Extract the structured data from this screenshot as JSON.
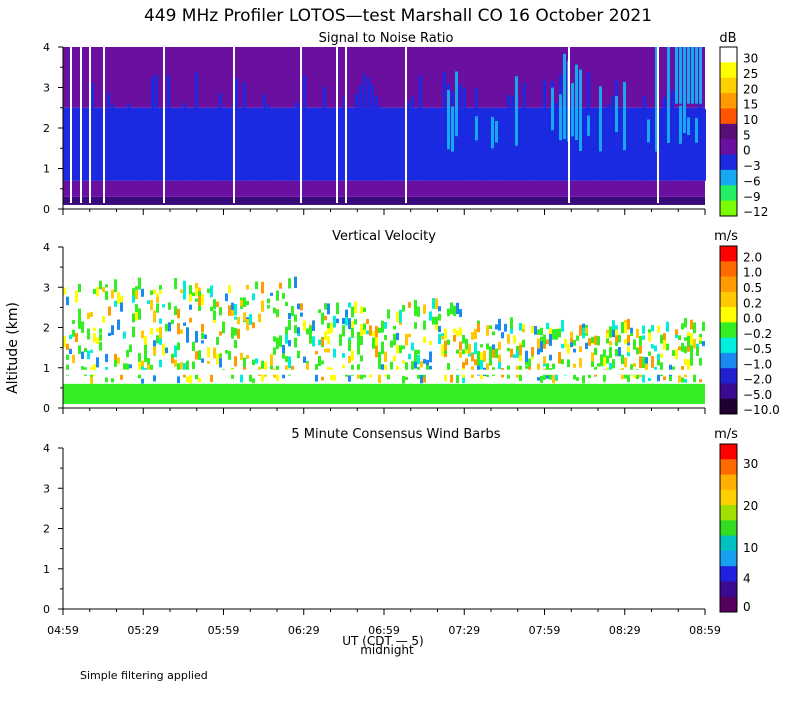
{
  "figure": {
    "title": "449 MHz Profiler LOTOS—test Marshall CO 16 October 2021",
    "y_axis_label": "Altitude (km)",
    "x_axis_label": "UT  (CDT — 5)",
    "midnight_label": "midnight",
    "footnote": "Simple filtering applied",
    "x_ticks": [
      "04:59",
      "05:29",
      "05:59",
      "06:29",
      "06:59",
      "07:29",
      "07:59",
      "08:29",
      "08:59"
    ],
    "y_ticks": [
      "0",
      "1",
      "2",
      "3",
      "4"
    ]
  },
  "chart_data": [
    {
      "type": "heatmap",
      "title": "Signal to Noise Ratio",
      "xlabel": "UT  (CDT — 5)",
      "ylabel": "Altitude (km)",
      "xlim": [
        "04:59",
        "08:59"
      ],
      "ylim": [
        0,
        4
      ],
      "colorbar": {
        "unit": "dB",
        "labels": [
          "30",
          "25",
          "20",
          "15",
          "10",
          "5",
          "0",
          "−3",
          "−6",
          "−9",
          "−12"
        ],
        "colors": [
          "#ffffff",
          "#ffff00",
          "#ffd000",
          "#ff9a00",
          "#ff5500",
          "#5a0e78",
          "#6a0fa0",
          "#1a2ae0",
          "#16a8f0",
          "#22ee66",
          "#7cfc00"
        ]
      },
      "layers": [
        {
          "color": "#3a0a7a",
          "from_km": 0.1,
          "to_km": 0.3,
          "description": "strongest return near ground"
        },
        {
          "color": "#6a0fa0",
          "from_km": 0.3,
          "to_km": 0.7
        },
        {
          "color": "#1a2ae0",
          "from_km": 0.7,
          "to_km": 2.5
        },
        {
          "color": "#6a0fa0",
          "from_km": 2.5,
          "to_km": 4.0
        }
      ],
      "notes": [
        "light blue (-6 dB) streaks increase after 07:30 above 2 km",
        "white data gaps at several times"
      ]
    },
    {
      "type": "heatmap",
      "title": "Vertical Velocity",
      "xlabel": "UT  (CDT — 5)",
      "ylabel": "Altitude (km)",
      "xlim": [
        "04:59",
        "08:59"
      ],
      "ylim": [
        0,
        4
      ],
      "colorbar": {
        "unit": "m/s",
        "labels": [
          "2.0",
          "1.0",
          "0.5",
          "0.2",
          "0.0",
          "−0.2",
          "−0.5",
          "−1.0",
          "−2.0",
          "−5.0",
          "−10.0"
        ],
        "colors": [
          "#ff0000",
          "#ff6a00",
          "#ff9a00",
          "#ffc800",
          "#ffff00",
          "#33ee22",
          "#00eedd",
          "#1a8af0",
          "#2020d0",
          "#3c0a90",
          "#200030"
        ]
      },
      "dominant_band": {
        "color": "#33ee22",
        "from_km": 0.1,
        "to_km": 0.6,
        "value_range": "-0.2 to 0.0"
      },
      "scattered_region_km": [
        0.6,
        3.0
      ]
    },
    {
      "type": "heatmap",
      "title": "5 Minute Consensus Wind Barbs",
      "xlabel": "UT  (CDT — 5)",
      "ylabel": "Altitude (km)",
      "xlim": [
        "04:59",
        "08:59"
      ],
      "ylim": [
        0,
        4
      ],
      "colorbar": {
        "unit": "m/s",
        "labels": [
          "30",
          "20",
          "10",
          "4",
          "0"
        ],
        "colors": [
          "#ff0000",
          "#ff6a00",
          "#ffb000",
          "#ffd000",
          "#a0e000",
          "#33dd22",
          "#00c0c0",
          "#18a0f0",
          "#2020e0",
          "#3c0a90",
          "#550060"
        ]
      },
      "barbs": []
    }
  ]
}
